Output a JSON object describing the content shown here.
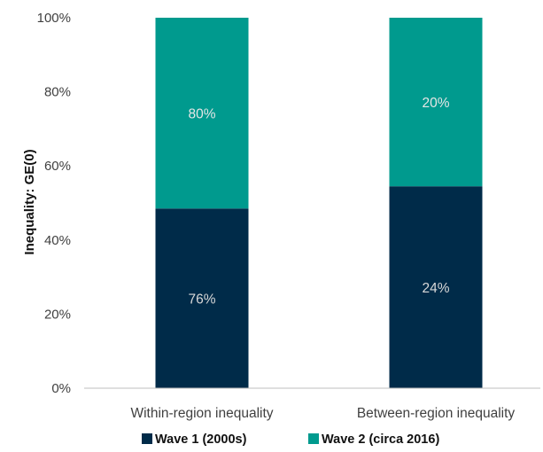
{
  "chart_data": {
    "type": "bar",
    "stacked": true,
    "title": "",
    "xlabel": "",
    "ylabel": "Inequality: GE(0)",
    "ylim": [
      0,
      100
    ],
    "yticks": [
      "0%",
      "20%",
      "40%",
      "60%",
      "80%",
      "100%"
    ],
    "grid": false,
    "legend_position": "bottom",
    "categories": [
      "Within-region inequality",
      "Between-region inequality"
    ],
    "series": [
      {
        "name": "Wave 1 (2000s)",
        "color": "#002b49",
        "values": [
          48.5,
          54.5
        ],
        "labels": [
          "76%",
          "24%"
        ],
        "label_color": "#d9d9d9"
      },
      {
        "name": "Wave 2 (circa 2016)",
        "color": "#009a8e",
        "values": [
          51.5,
          45.5
        ],
        "labels": [
          "80%",
          "20%"
        ],
        "label_color": "#e6e6e6"
      }
    ]
  }
}
